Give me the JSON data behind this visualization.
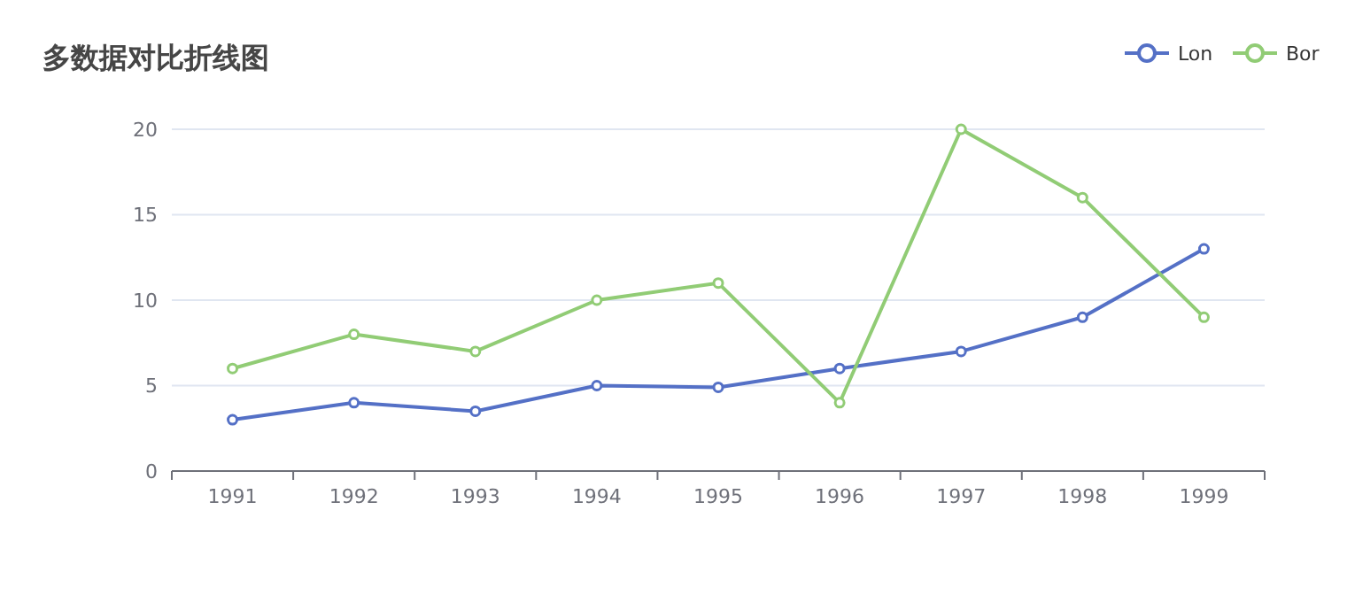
{
  "chart_data": {
    "type": "line",
    "title": "多数据对比折线图",
    "categories": [
      "1991",
      "1992",
      "1993",
      "1994",
      "1995",
      "1996",
      "1997",
      "1998",
      "1999"
    ],
    "series": [
      {
        "name": "Lon",
        "color": "#5470c6",
        "values": [
          3,
          4,
          3.5,
          5,
          4.9,
          6,
          7,
          9,
          13
        ]
      },
      {
        "name": "Bor",
        "color": "#91cc75",
        "values": [
          6,
          8,
          7,
          10,
          11,
          4,
          20,
          16,
          9
        ]
      }
    ],
    "ylim": [
      0,
      20
    ],
    "yticks": [
      0,
      5,
      10,
      15,
      20
    ],
    "grid": "y",
    "legend": "top right",
    "marker": "circle",
    "line_style": "solid"
  }
}
